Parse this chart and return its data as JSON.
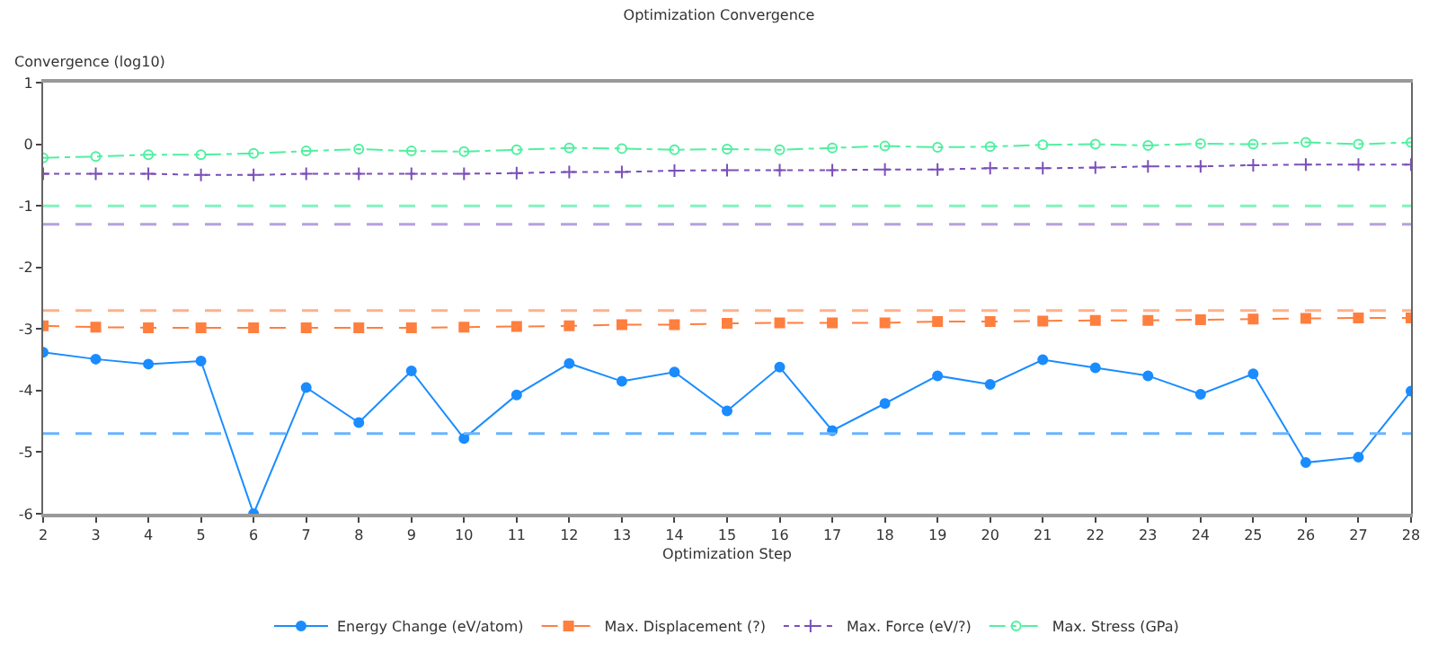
{
  "chart_data": {
    "type": "line",
    "title": "Optimization Convergence",
    "xlabel": "Optimization Step",
    "ylabel": "Convergence (log10)",
    "x": [
      2,
      3,
      4,
      5,
      6,
      7,
      8,
      9,
      10,
      11,
      12,
      13,
      14,
      15,
      16,
      17,
      18,
      19,
      20,
      21,
      22,
      23,
      24,
      25,
      26,
      27,
      28
    ],
    "xlim": [
      2,
      28
    ],
    "xticks": [
      2,
      3,
      4,
      5,
      6,
      7,
      8,
      9,
      10,
      11,
      12,
      13,
      14,
      15,
      16,
      17,
      18,
      19,
      20,
      21,
      22,
      23,
      24,
      25,
      26,
      27,
      28
    ],
    "ylim": [
      -6,
      1
    ],
    "yticks": [
      -6,
      -5,
      -4,
      -3,
      -2,
      -1,
      0,
      1
    ],
    "legend": "bottom",
    "series": [
      {
        "name": "Energy Change (eV/atom)",
        "color": "#1a8cff",
        "marker": "circle",
        "line_style": "solid",
        "values": [
          -3.38,
          -3.49,
          -3.57,
          -3.52,
          -6.0,
          -3.95,
          -4.52,
          -3.68,
          -4.78,
          -4.07,
          -3.56,
          -3.85,
          -3.7,
          -4.33,
          -3.62,
          -4.65,
          -4.21,
          -3.76,
          -3.9,
          -3.5,
          -3.63,
          -3.76,
          -4.06,
          -3.73,
          -5.17,
          -5.08,
          -4.01
        ]
      },
      {
        "name": "Max. Displacement (?)",
        "color": "#ff7f3f",
        "marker": "square",
        "line_style": "dashed",
        "values": [
          -2.95,
          -2.97,
          -2.98,
          -2.98,
          -2.98,
          -2.98,
          -2.98,
          -2.98,
          -2.97,
          -2.96,
          -2.95,
          -2.93,
          -2.93,
          -2.91,
          -2.9,
          -2.9,
          -2.9,
          -2.88,
          -2.88,
          -2.87,
          -2.86,
          -2.86,
          -2.85,
          -2.84,
          -2.83,
          -2.82,
          -2.82
        ]
      },
      {
        "name": "Max. Force (eV/?)",
        "color": "#7b4fb8",
        "marker": "cross",
        "line_style": "dotted",
        "values": [
          -0.48,
          -0.48,
          -0.48,
          -0.5,
          -0.5,
          -0.48,
          -0.48,
          -0.48,
          -0.48,
          -0.47,
          -0.45,
          -0.45,
          -0.43,
          -0.42,
          -0.42,
          -0.42,
          -0.41,
          -0.41,
          -0.39,
          -0.39,
          -0.38,
          -0.36,
          -0.36,
          -0.34,
          -0.33,
          -0.33,
          -0.33
        ]
      },
      {
        "name": "Max. Stress (GPa)",
        "color": "#4ff0a0",
        "marker": "circle-open",
        "line_style": "dashdot",
        "values": [
          -0.22,
          -0.2,
          -0.17,
          -0.17,
          -0.15,
          -0.11,
          -0.08,
          -0.11,
          -0.12,
          -0.09,
          -0.06,
          -0.07,
          -0.09,
          -0.08,
          -0.09,
          -0.06,
          -0.03,
          -0.05,
          -0.04,
          -0.01,
          0.0,
          -0.02,
          0.01,
          0.0,
          0.03,
          0.0,
          0.03
        ]
      }
    ],
    "ref_lines": [
      {
        "axis": "y",
        "value": -4.7,
        "color": "#6ab4ff",
        "line_style": "dashed"
      },
      {
        "axis": "y",
        "value": -2.7,
        "color": "#ffb08a",
        "line_style": "dashed"
      },
      {
        "axis": "y",
        "value": -1.3,
        "color": "#b8a0dc",
        "line_style": "dashed"
      },
      {
        "axis": "y",
        "value": -1.0,
        "color": "#7ff5bd",
        "line_style": "dashed"
      }
    ]
  }
}
